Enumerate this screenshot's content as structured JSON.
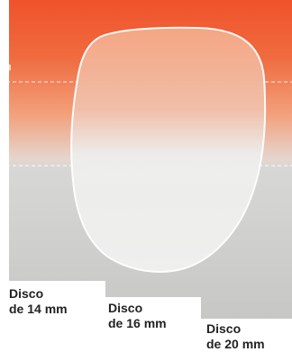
{
  "discs": [
    {
      "line1": "Disco",
      "line2": "de 14 mm"
    },
    {
      "line1": "Disco",
      "line2": "de 16 mm"
    },
    {
      "line1": "Disco",
      "line2": "de 20 mm"
    }
  ],
  "colors": {
    "top_orange": "#f0522b",
    "mid_orange": "#f39c71",
    "grey_band": "#d7d7d5",
    "grey_lower": "#c7c7c5",
    "lens_fill": "#f3f1ec",
    "lens_outline": "#ffffff",
    "label_text": "#222222"
  }
}
